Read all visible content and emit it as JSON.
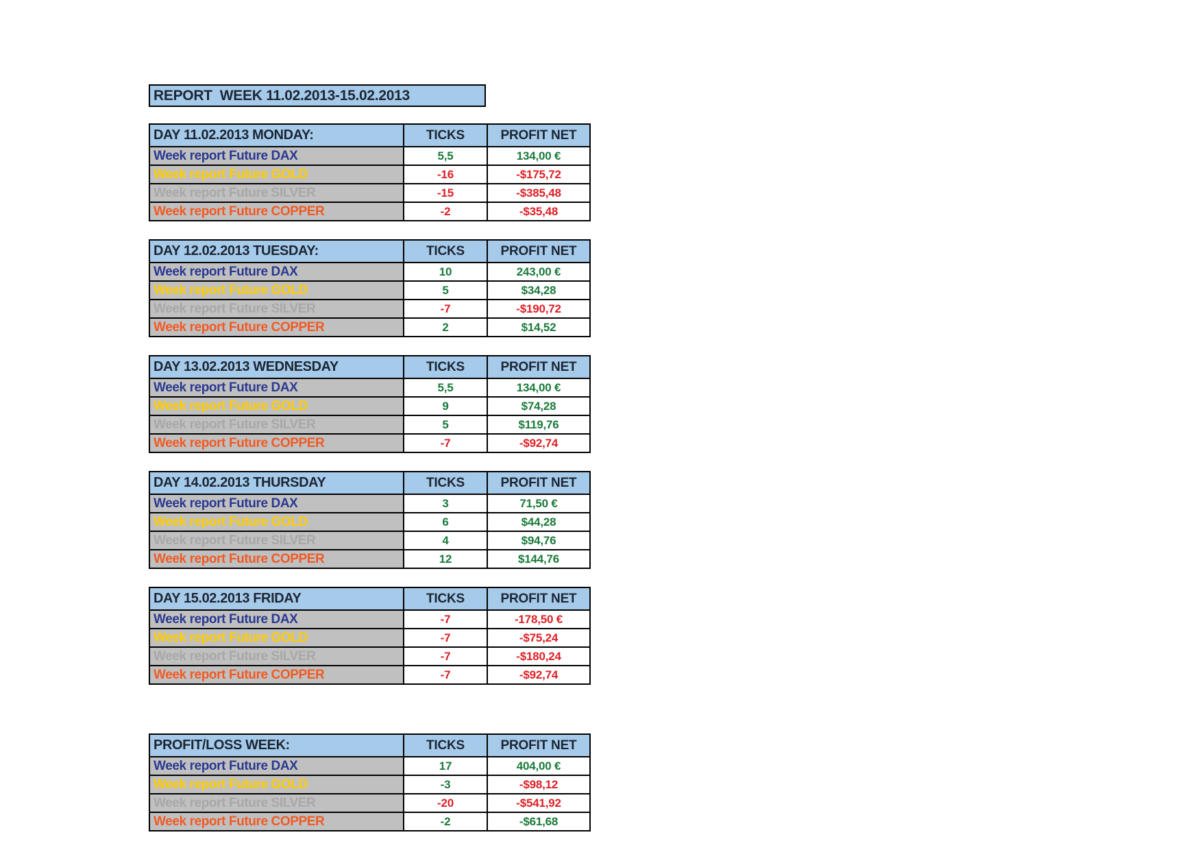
{
  "report_title": "REPORT  WEEK 11.02.2013-15.02.2013",
  "labels": {
    "ticks": "TICKS",
    "profit_net": "PROFIT NET"
  },
  "colors": {
    "page-bg": "#FFFFFF",
    "header-bg": "#A6CAEA",
    "header-text": "#1C2633",
    "label-bg": "#C0C0C0",
    "border": "#000000",
    "positive": "#1A7A3A",
    "negative": "#DE1F26",
    "dax": "#2B3990",
    "gold": "#FFCC00",
    "silver": "#A8A8A8",
    "copper": "#F15A24"
  },
  "tables": [
    {
      "title": "DAY 11.02.2013 MONDAY:",
      "rows": [
        {
          "label": "Week report Future DAX",
          "instrument": "dax",
          "ticks": "5,5",
          "ticks_color": "green",
          "profit": "134,00 €",
          "profit_color": "green"
        },
        {
          "label": "Week report Future GOLD",
          "instrument": "gold",
          "ticks": "-16",
          "ticks_color": "red",
          "profit": "-$175,72",
          "profit_color": "red"
        },
        {
          "label": "Week report Future SILVER",
          "instrument": "silver",
          "ticks": "-15",
          "ticks_color": "red",
          "profit": "-$385,48",
          "profit_color": "red"
        },
        {
          "label": "Week report Future COPPER",
          "instrument": "copper",
          "ticks": "-2",
          "ticks_color": "red",
          "profit": "-$35,48",
          "profit_color": "red"
        }
      ]
    },
    {
      "title": "DAY 12.02.2013 TUESDAY:",
      "rows": [
        {
          "label": "Week report Future DAX",
          "instrument": "dax",
          "ticks": "10",
          "ticks_color": "green",
          "profit": "243,00 €",
          "profit_color": "green"
        },
        {
          "label": "Week report Future GOLD",
          "instrument": "gold",
          "ticks": "5",
          "ticks_color": "green",
          "profit": "$34,28",
          "profit_color": "green"
        },
        {
          "label": "Week report Future SILVER",
          "instrument": "silver",
          "ticks": "-7",
          "ticks_color": "red",
          "profit": "-$190,72",
          "profit_color": "red"
        },
        {
          "label": "Week report Future COPPER",
          "instrument": "copper",
          "ticks": "2",
          "ticks_color": "green",
          "profit": "$14,52",
          "profit_color": "green"
        }
      ]
    },
    {
      "title": "DAY 13.02.2013 WEDNESDAY",
      "rows": [
        {
          "label": "Week report Future DAX",
          "instrument": "dax",
          "ticks": "5,5",
          "ticks_color": "green",
          "profit": "134,00 €",
          "profit_color": "green"
        },
        {
          "label": "Week report Future GOLD",
          "instrument": "gold",
          "ticks": "9",
          "ticks_color": "green",
          "profit": "$74,28",
          "profit_color": "green"
        },
        {
          "label": "Week report Future SILVER",
          "instrument": "silver",
          "ticks": "5",
          "ticks_color": "green",
          "profit": "$119,76",
          "profit_color": "green"
        },
        {
          "label": "Week report Future COPPER",
          "instrument": "copper",
          "ticks": "-7",
          "ticks_color": "red",
          "profit": "-$92,74",
          "profit_color": "red"
        }
      ]
    },
    {
      "title": "DAY 14.02.2013 THURSDAY",
      "rows": [
        {
          "label": "Week report Future DAX",
          "instrument": "dax",
          "ticks": "3",
          "ticks_color": "green",
          "profit": "71,50 €",
          "profit_color": "green"
        },
        {
          "label": "Week report Future GOLD",
          "instrument": "gold",
          "ticks": "6",
          "ticks_color": "green",
          "profit": "$44,28",
          "profit_color": "green"
        },
        {
          "label": "Week report Future SILVER",
          "instrument": "silver",
          "ticks": "4",
          "ticks_color": "green",
          "profit": "$94,76",
          "profit_color": "green"
        },
        {
          "label": "Week report Future COPPER",
          "instrument": "copper",
          "ticks": "12",
          "ticks_color": "green",
          "profit": "$144,76",
          "profit_color": "green"
        }
      ]
    },
    {
      "title": "DAY 15.02.2013 FRIDAY",
      "rows": [
        {
          "label": "Week report Future DAX",
          "instrument": "dax",
          "ticks": "-7",
          "ticks_color": "red",
          "profit": "-178,50 €",
          "profit_color": "red"
        },
        {
          "label": "Week report Future GOLD",
          "instrument": "gold",
          "ticks": "-7",
          "ticks_color": "red",
          "profit": "-$75,24",
          "profit_color": "red"
        },
        {
          "label": "Week report Future SILVER",
          "instrument": "silver",
          "ticks": "-7",
          "ticks_color": "red",
          "profit": "-$180,24",
          "profit_color": "red"
        },
        {
          "label": "Week report Future COPPER",
          "instrument": "copper",
          "ticks": "-7",
          "ticks_color": "red",
          "profit": "-$92,74",
          "profit_color": "red"
        }
      ]
    },
    {
      "title": "PROFIT/LOSS WEEK:",
      "rows": [
        {
          "label": "Week report Future DAX",
          "instrument": "dax",
          "ticks": "17",
          "ticks_color": "green",
          "profit": "404,00 €",
          "profit_color": "green"
        },
        {
          "label": "Week report Future GOLD",
          "instrument": "gold",
          "ticks": "-3",
          "ticks_color": "green",
          "profit": "-$98,12",
          "profit_color": "red"
        },
        {
          "label": "Week report Future SILVER",
          "instrument": "silver",
          "ticks": "-20",
          "ticks_color": "red",
          "profit": "-$541,92",
          "profit_color": "red"
        },
        {
          "label": "Week report Future COPPER",
          "instrument": "copper",
          "ticks": "-2",
          "ticks_color": "green",
          "profit": "-$61,68",
          "profit_color": "green"
        }
      ]
    }
  ]
}
